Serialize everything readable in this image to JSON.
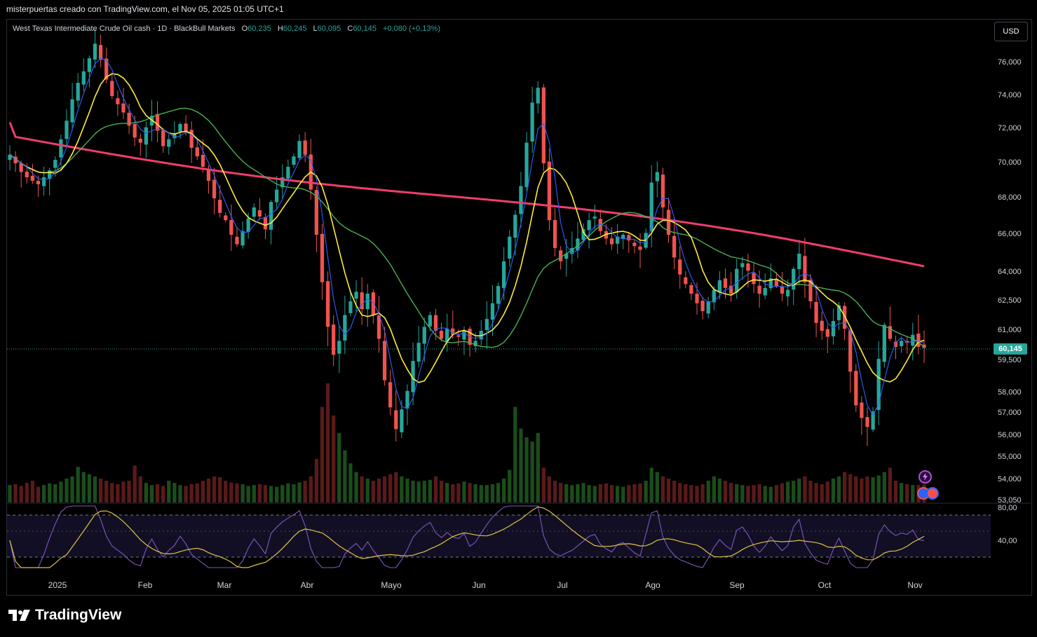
{
  "credit": "misterpuertas creado con TradingView.com, el Nov 05, 2025 01:05 UTC+1",
  "legend": {
    "symbol": "West Texas Intermediate Crude Oil cash · 1D · BlackBull Markets",
    "o_label": "O",
    "o": "60,235",
    "h_label": "H",
    "h": "60,245",
    "l_label": "L",
    "l": "60,095",
    "c_label": "C",
    "c": "60,145",
    "change": "+0,080 (+0,13%)"
  },
  "currency_button": "USD",
  "last_price_label": "60,145",
  "brand": "TradingView",
  "colors": {
    "up": "#26a69a",
    "down": "#ef5350",
    "ma200": "#f23d6d",
    "ma50": "#4caf50",
    "ma20": "#ffeb3b",
    "ma9": "#2962ff",
    "rsi": "#7e57c2",
    "rsi_ma": "#e0c341"
  },
  "chart_data": {
    "type": "candlestick",
    "y_ticks": [
      "76,000",
      "74,000",
      "72,000",
      "70,000",
      "68,000",
      "66,000",
      "64,000",
      "62,500",
      "61,000",
      "59,500",
      "58,000",
      "57,000",
      "56,000",
      "55,000",
      "54,000",
      "53,050"
    ],
    "x_ticks": [
      "2025",
      "Feb",
      "Mar",
      "Abr",
      "Mayo",
      "Jun",
      "Jul",
      "Ago",
      "Sep",
      "Oct",
      "Nov"
    ],
    "rsi_ticks": [
      "80,00",
      "40,00"
    ],
    "close_series": [
      70.5,
      70.0,
      69.5,
      69.2,
      69.0,
      68.8,
      69.2,
      69.6,
      70.2,
      71.4,
      72.5,
      73.8,
      74.8,
      75.5,
      76.3,
      77.2,
      76.2,
      75.0,
      74.0,
      73.5,
      73.0,
      72.2,
      71.5,
      71.2,
      72.1,
      72.8,
      71.9,
      71.0,
      71.4,
      71.7,
      72.3,
      71.8,
      70.9,
      70.4,
      69.8,
      69.0,
      68.0,
      67.2,
      66.8,
      66.0,
      65.5,
      66.2,
      66.9,
      67.5,
      67.0,
      66.3,
      67.8,
      68.5,
      69.2,
      69.8,
      70.4,
      71.3,
      70.5,
      68.5,
      66.0,
      63.5,
      61.2,
      59.8,
      60.5,
      61.8,
      62.5,
      63.0,
      62.1,
      62.9,
      61.8,
      60.6,
      58.6,
      57.3,
      56.3,
      57.2,
      58.1,
      59.5,
      60.4,
      61.2,
      61.8,
      61.0,
      60.6,
      61.1,
      60.8,
      60.7,
      61.0,
      60.3,
      60.5,
      61.0,
      61.6,
      62.4,
      63.3,
      64.6,
      65.9,
      67.1,
      68.7,
      71.2,
      73.6,
      74.5,
      70.0,
      66.8,
      65.3,
      64.6,
      65.0,
      65.3,
      65.8,
      66.3,
      66.8,
      67.0,
      66.2,
      65.8,
      65.5,
      65.9,
      66.0,
      65.7,
      65.4,
      65.2,
      66.1,
      68.9,
      69.5,
      67.5,
      66.0,
      64.8,
      63.9,
      63.4,
      62.9,
      62.4,
      62.0,
      62.5,
      63.1,
      63.6,
      63.2,
      62.9,
      64.2,
      64.5,
      64.1,
      63.4,
      62.9,
      63.2,
      63.7,
      63.3,
      62.9,
      63.1,
      64.2,
      65.0,
      63.5,
      62.5,
      61.4,
      61.0,
      60.7,
      61.5,
      62.3,
      61.1,
      59.0,
      57.4,
      56.8,
      56.4,
      57.1,
      59.6,
      61.3,
      60.6,
      60.2,
      60.5,
      60.4,
      60.8,
      60.2,
      60.145
    ],
    "volume_relative": [
      0.4,
      0.42,
      0.38,
      0.45,
      0.5,
      0.36,
      0.4,
      0.44,
      0.42,
      0.48,
      0.55,
      0.6,
      0.82,
      0.7,
      0.65,
      0.6,
      0.55,
      0.5,
      0.45,
      0.42,
      0.48,
      0.5,
      0.85,
      0.6,
      0.45,
      0.4,
      0.42,
      0.38,
      0.5,
      0.45,
      0.4,
      0.38,
      0.42,
      0.44,
      0.5,
      0.55,
      0.6,
      0.58,
      0.5,
      0.46,
      0.44,
      0.42,
      0.38,
      0.4,
      0.42,
      0.4,
      0.38,
      0.36,
      0.4,
      0.44,
      0.42,
      0.46,
      0.5,
      0.6,
      1.0,
      2.2,
      2.8,
      2.0,
      1.6,
      1.2,
      0.9,
      0.7,
      0.6,
      0.55,
      0.5,
      0.55,
      0.6,
      0.65,
      0.7,
      0.6,
      0.55,
      0.5,
      0.48,
      0.5,
      0.52,
      0.6,
      0.5,
      0.45,
      0.42,
      0.44,
      0.48,
      0.45,
      0.42,
      0.4,
      0.4,
      0.42,
      0.45,
      0.55,
      0.75,
      2.2,
      1.7,
      1.5,
      1.4,
      1.6,
      0.8,
      0.6,
      0.5,
      0.45,
      0.42,
      0.4,
      0.42,
      0.45,
      0.4,
      0.38,
      0.42,
      0.44,
      0.4,
      0.38,
      0.36,
      0.4,
      0.42,
      0.44,
      0.5,
      0.8,
      0.7,
      0.6,
      0.55,
      0.5,
      0.45,
      0.42,
      0.4,
      0.38,
      0.42,
      0.5,
      0.6,
      0.55,
      0.5,
      0.45,
      0.42,
      0.4,
      0.38,
      0.4,
      0.42,
      0.38,
      0.36,
      0.4,
      0.44,
      0.48,
      0.5,
      0.55,
      0.6,
      0.5,
      0.45,
      0.42,
      0.48,
      0.55,
      0.6,
      0.7,
      0.65,
      0.6,
      0.55,
      0.6,
      0.58,
      0.62,
      0.7,
      0.8,
      0.5,
      0.45,
      0.42,
      0.4
    ]
  }
}
